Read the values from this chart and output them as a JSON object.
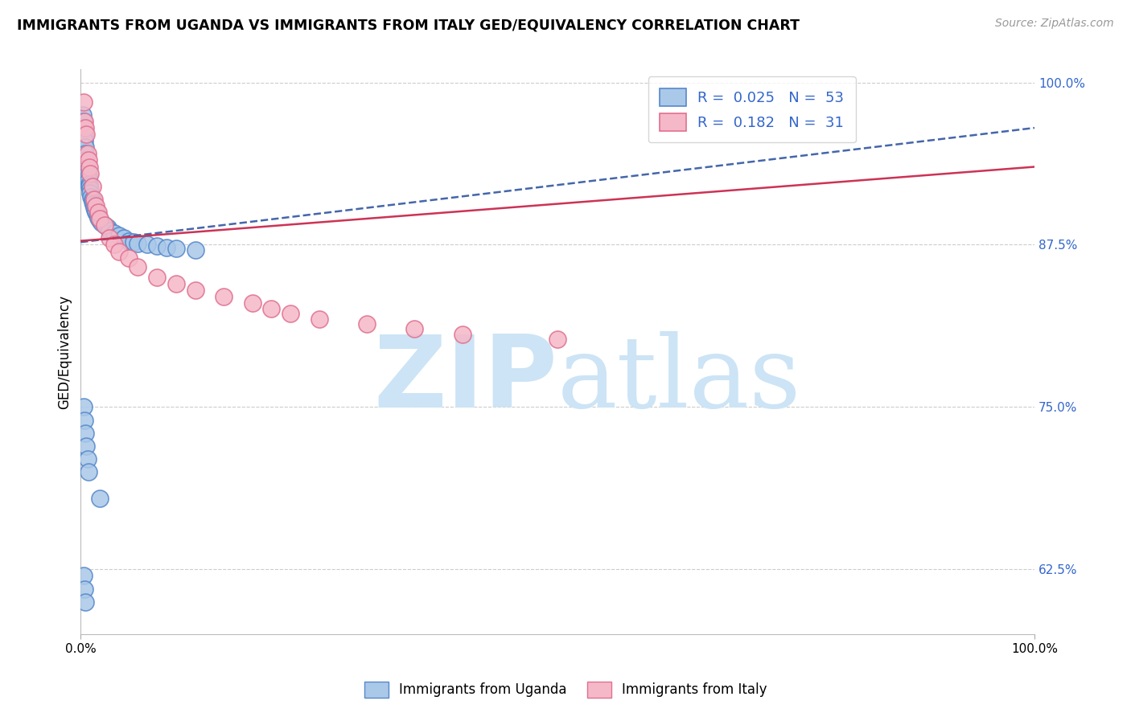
{
  "title": "IMMIGRANTS FROM UGANDA VS IMMIGRANTS FROM ITALY GED/EQUIVALENCY CORRELATION CHART",
  "source_text": "Source: ZipAtlas.com",
  "ylabel": "GED/Equivalency",
  "xlim": [
    0.0,
    1.0
  ],
  "ylim": [
    0.575,
    1.01
  ],
  "x_tick_labels": [
    "0.0%",
    "100.0%"
  ],
  "y_tick_labels": [
    "62.5%",
    "75.0%",
    "87.5%",
    "100.0%"
  ],
  "y_tick_positions": [
    0.625,
    0.75,
    0.875,
    1.0
  ],
  "uganda_color": "#aac8e8",
  "italy_color": "#f5b8c8",
  "uganda_edge": "#5588cc",
  "italy_edge": "#e07090",
  "trend_uganda_color": "#4466aa",
  "trend_italy_color": "#cc3355",
  "grid_color": "#cccccc",
  "legend_text_color": "#3366cc",
  "r_uganda": 0.025,
  "n_uganda": 53,
  "r_italy": 0.182,
  "n_italy": 31,
  "watermark_color": "#cce4f5",
  "uganda_x": [
    0.002,
    0.003,
    0.003,
    0.004,
    0.004,
    0.005,
    0.005,
    0.005,
    0.006,
    0.006,
    0.007,
    0.007,
    0.008,
    0.008,
    0.009,
    0.009,
    0.01,
    0.01,
    0.011,
    0.012,
    0.012,
    0.013,
    0.014,
    0.015,
    0.016,
    0.017,
    0.018,
    0.02,
    0.022,
    0.025,
    0.028,
    0.03,
    0.035,
    0.04,
    0.045,
    0.05,
    0.055,
    0.06,
    0.07,
    0.08,
    0.09,
    0.1,
    0.12,
    0.003,
    0.004,
    0.005,
    0.006,
    0.007,
    0.008,
    0.02,
    0.003,
    0.004,
    0.005
  ],
  "uganda_y": [
    0.975,
    0.97,
    0.965,
    0.96,
    0.955,
    0.95,
    0.945,
    0.94,
    0.938,
    0.935,
    0.932,
    0.93,
    0.928,
    0.925,
    0.922,
    0.92,
    0.918,
    0.915,
    0.912,
    0.91,
    0.908,
    0.906,
    0.904,
    0.902,
    0.9,
    0.898,
    0.896,
    0.894,
    0.892,
    0.89,
    0.888,
    0.886,
    0.884,
    0.882,
    0.88,
    0.878,
    0.877,
    0.876,
    0.875,
    0.874,
    0.873,
    0.872,
    0.871,
    0.75,
    0.74,
    0.73,
    0.72,
    0.71,
    0.7,
    0.68,
    0.62,
    0.61,
    0.6
  ],
  "italy_x": [
    0.003,
    0.004,
    0.005,
    0.006,
    0.007,
    0.008,
    0.009,
    0.01,
    0.012,
    0.014,
    0.016,
    0.018,
    0.02,
    0.025,
    0.03,
    0.035,
    0.04,
    0.05,
    0.06,
    0.08,
    0.1,
    0.12,
    0.15,
    0.18,
    0.2,
    0.22,
    0.25,
    0.3,
    0.35,
    0.4,
    0.5
  ],
  "italy_y": [
    0.985,
    0.97,
    0.965,
    0.96,
    0.945,
    0.94,
    0.935,
    0.93,
    0.92,
    0.91,
    0.905,
    0.9,
    0.895,
    0.89,
    0.88,
    0.875,
    0.87,
    0.865,
    0.858,
    0.85,
    0.845,
    0.84,
    0.835,
    0.83,
    0.826,
    0.822,
    0.818,
    0.814,
    0.81,
    0.806,
    0.802
  ],
  "trend_ug_x0": 0.0,
  "trend_ug_y0": 0.877,
  "trend_ug_x1": 1.0,
  "trend_ug_y1": 0.965,
  "trend_it_x0": 0.0,
  "trend_it_y0": 0.878,
  "trend_it_x1": 1.0,
  "trend_it_y1": 0.935
}
